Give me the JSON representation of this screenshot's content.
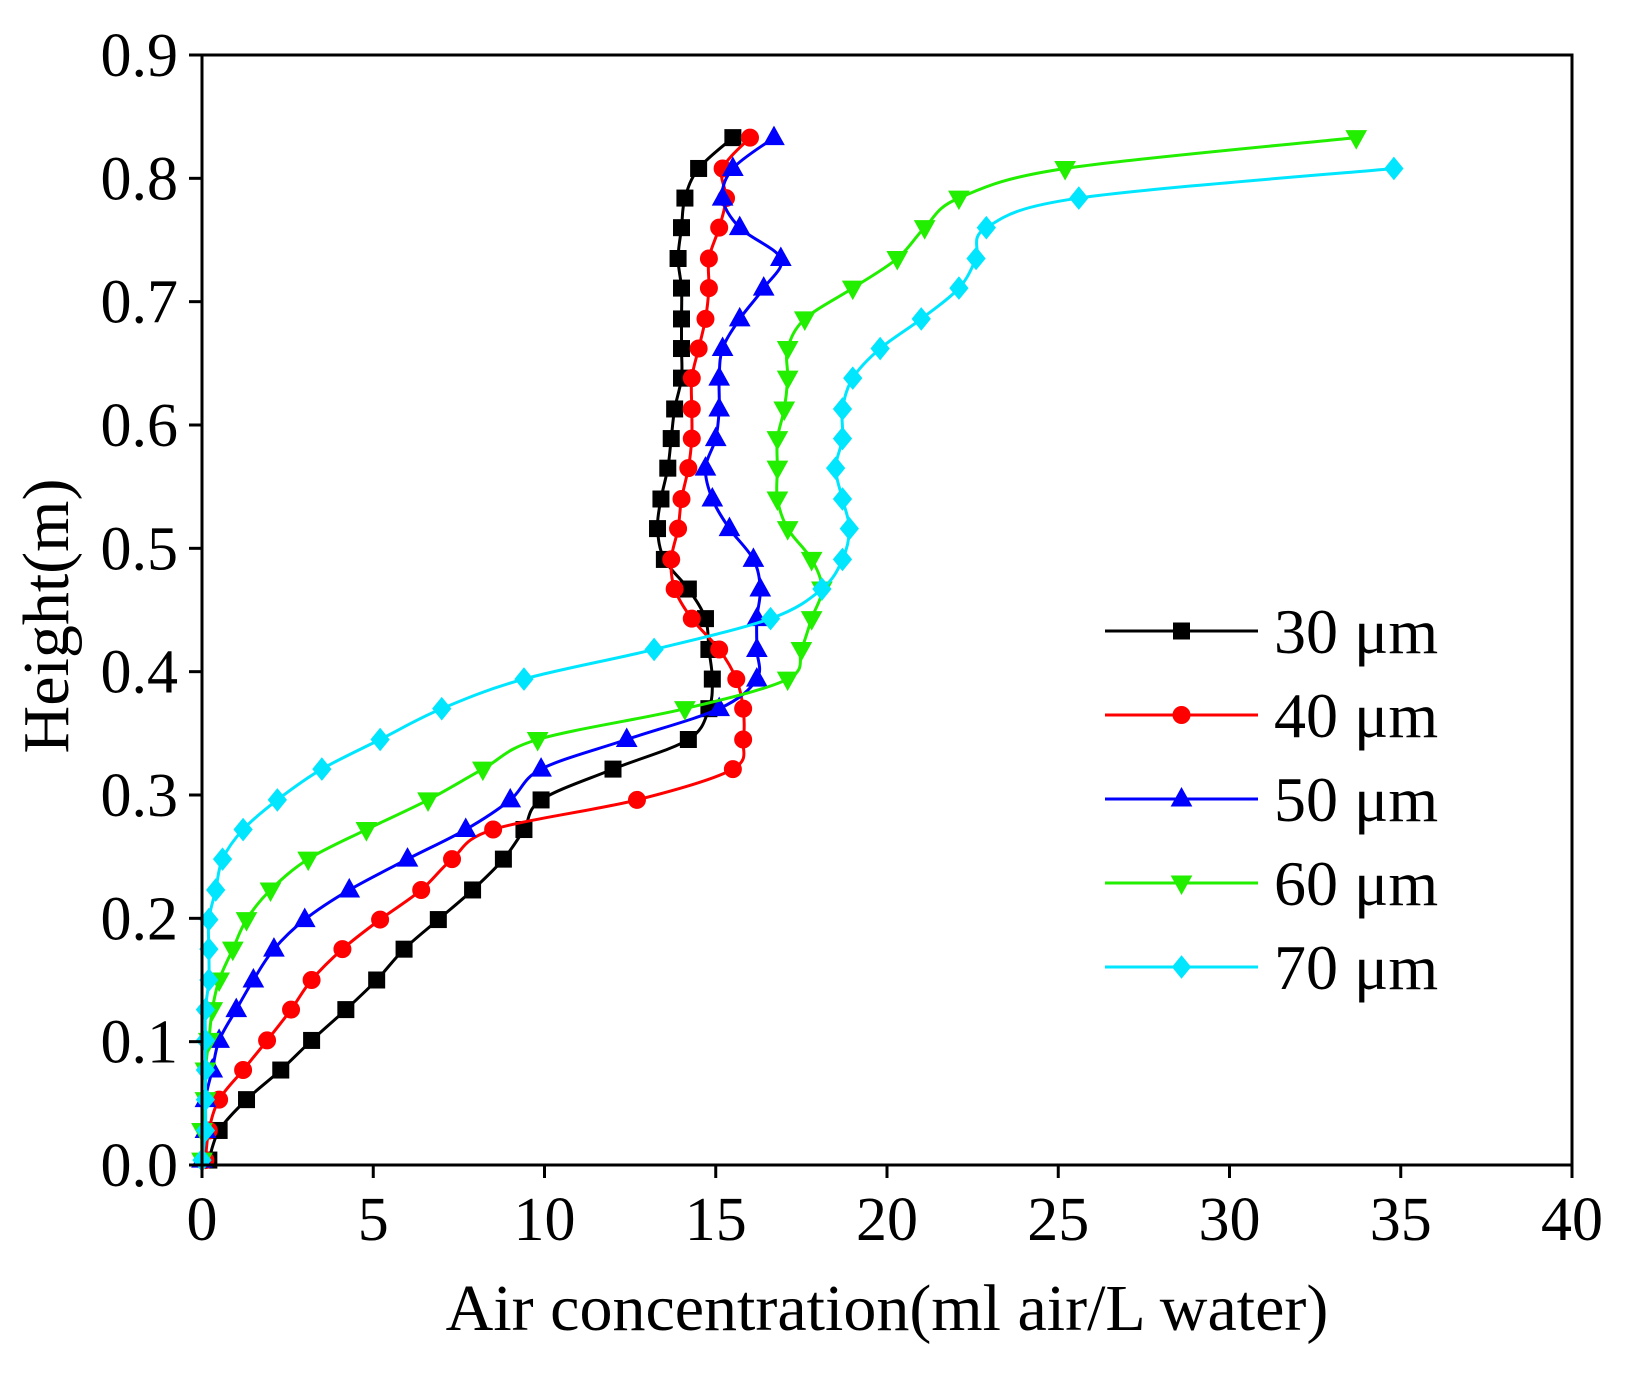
{
  "chart_data": {
    "type": "line",
    "xlabel": "Air concentration(ml air/L water)",
    "ylabel": "Height(m)",
    "xlim": [
      0,
      40
    ],
    "ylim": [
      0,
      0.9
    ],
    "x_ticks": [
      0,
      5,
      10,
      15,
      20,
      25,
      30,
      35,
      40
    ],
    "x_tick_labels": [
      "0",
      "5",
      "10",
      "15",
      "20",
      "25",
      "30",
      "35",
      "40"
    ],
    "y_ticks": [
      0,
      0.1,
      0.2,
      0.3,
      0.4,
      0.5,
      0.6,
      0.7,
      0.8,
      0.9
    ],
    "y_tick_labels": [
      "0.0",
      "0.1",
      "0.2",
      "0.3",
      "0.4",
      "0.5",
      "0.6",
      "0.7",
      "0.8",
      "0.9"
    ],
    "grid": false,
    "legend_position": "center-right",
    "y": [
      0.004,
      0.028,
      0.053,
      0.077,
      0.101,
      0.126,
      0.15,
      0.175,
      0.199,
      0.223,
      0.248,
      0.272,
      0.296,
      0.321,
      0.345,
      0.37,
      0.394,
      0.418,
      0.443,
      0.467,
      0.491,
      0.516,
      0.54,
      0.565,
      0.589,
      0.613,
      0.638,
      0.662,
      0.686,
      0.711,
      0.735,
      0.76,
      0.784,
      0.808,
      0.833
    ],
    "series": [
      {
        "name": "30 μm",
        "color": "#000000",
        "marker": "square",
        "x": [
          0.2,
          0.5,
          1.3,
          2.3,
          3.2,
          4.2,
          5.1,
          5.9,
          6.9,
          7.9,
          8.8,
          9.4,
          9.9,
          12.0,
          14.2,
          14.8,
          14.9,
          14.8,
          14.7,
          14.2,
          13.5,
          13.3,
          13.4,
          13.6,
          13.7,
          13.8,
          14.0,
          14.0,
          14.0,
          14.0,
          13.9,
          14.0,
          14.1,
          14.5,
          15.5
        ]
      },
      {
        "name": "40 μm",
        "color": "#ff0000",
        "marker": "circle",
        "x": [
          0.1,
          0.2,
          0.5,
          1.2,
          1.9,
          2.6,
          3.2,
          4.1,
          5.2,
          6.4,
          7.3,
          8.5,
          12.7,
          15.5,
          15.8,
          15.8,
          15.6,
          15.1,
          14.3,
          13.8,
          13.7,
          13.9,
          14.0,
          14.2,
          14.3,
          14.3,
          14.3,
          14.5,
          14.7,
          14.8,
          14.8,
          15.1,
          15.3,
          15.2,
          16.0
        ]
      },
      {
        "name": "50 μm",
        "color": "#0000ff",
        "marker": "triangle-up",
        "x": [
          0.0,
          0.1,
          0.1,
          0.3,
          0.5,
          1.0,
          1.5,
          2.1,
          3.0,
          4.3,
          6.0,
          7.7,
          9.0,
          9.9,
          12.4,
          15.1,
          16.2,
          16.2,
          16.2,
          16.3,
          16.1,
          15.4,
          14.9,
          14.7,
          15.0,
          15.1,
          15.1,
          15.2,
          15.7,
          16.4,
          16.9,
          15.7,
          15.2,
          15.5,
          16.7
        ]
      },
      {
        "name": "60 μm",
        "color": "#22ee00",
        "marker": "triangle-down",
        "x": [
          0.0,
          0.0,
          0.1,
          0.1,
          0.2,
          0.3,
          0.5,
          0.9,
          1.3,
          2.0,
          3.1,
          4.8,
          6.6,
          8.2,
          9.8,
          14.1,
          17.1,
          17.5,
          17.8,
          18.1,
          17.8,
          17.1,
          16.8,
          16.8,
          16.8,
          17.0,
          17.1,
          17.1,
          17.6,
          19.0,
          20.3,
          21.1,
          22.1,
          25.2,
          33.7
        ]
      },
      {
        "name": "70 μm",
        "color": "#00e6ff",
        "marker": "diamond",
        "x": [
          0.0,
          0.1,
          0.1,
          0.1,
          0.1,
          0.1,
          0.2,
          0.2,
          0.2,
          0.4,
          0.6,
          1.2,
          2.2,
          3.5,
          5.2,
          7.0,
          9.4,
          13.2,
          16.6,
          18.1,
          18.7,
          18.9,
          18.7,
          18.5,
          18.7,
          18.7,
          19.0,
          19.8,
          21.0,
          22.1,
          22.6,
          22.9,
          25.6,
          34.8,
          null
        ]
      }
    ]
  }
}
